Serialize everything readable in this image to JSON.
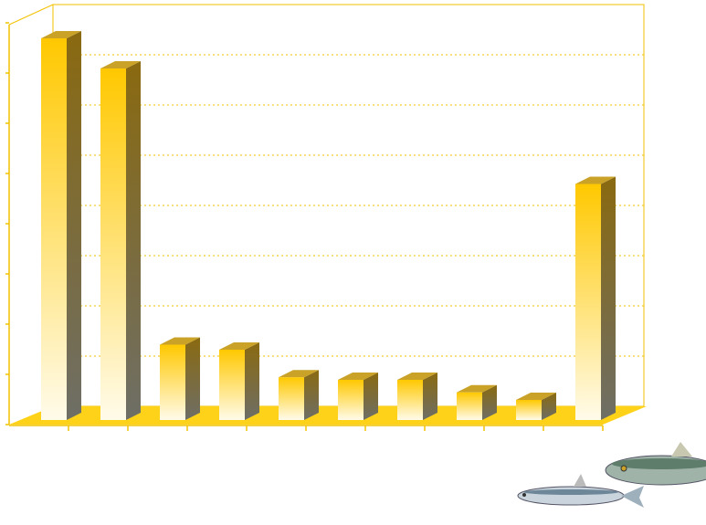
{
  "chart_data": {
    "type": "bar3d",
    "categories": [
      null,
      null,
      null,
      null,
      null,
      null,
      null,
      null,
      null,
      null
    ],
    "values": [
      7.6,
      7.0,
      1.5,
      1.4,
      0.85,
      0.8,
      0.8,
      0.55,
      0.4,
      4.7
    ],
    "color": "#ffcc00",
    "ylim": [
      0,
      8
    ],
    "yticks": [
      0,
      1,
      2,
      3,
      4,
      5,
      6,
      7,
      8
    ],
    "grid": true
  }
}
